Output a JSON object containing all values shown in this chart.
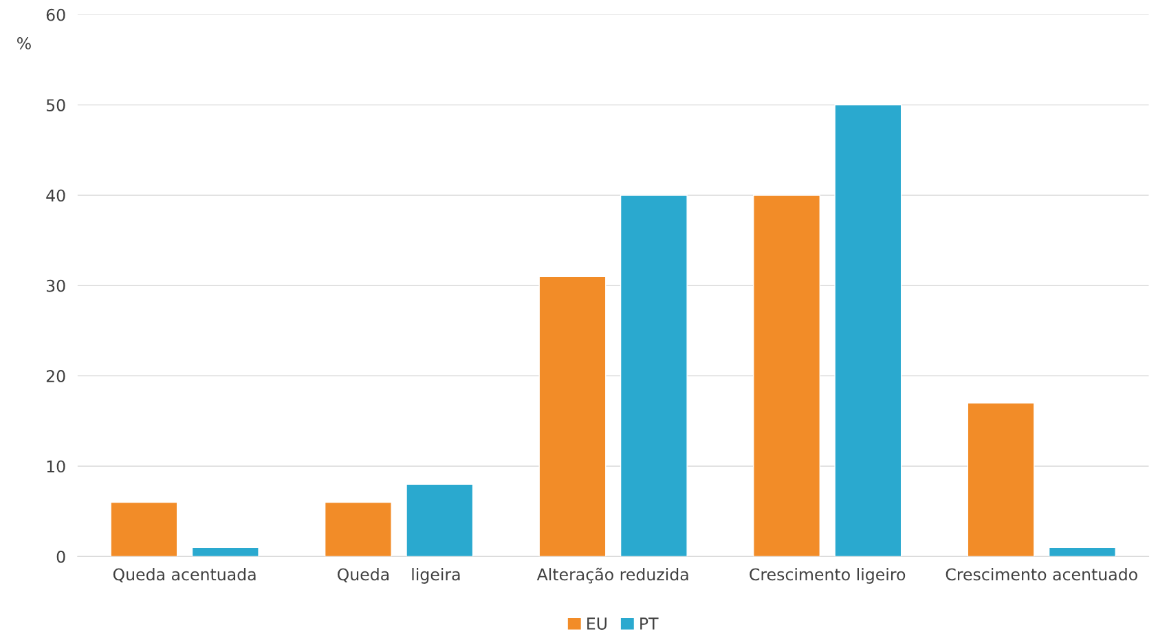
{
  "chart_data": {
    "type": "bar",
    "ylabel": "%",
    "categories": [
      "Queda acentuada",
      "Queda    ligeira",
      "Alteração reduzida",
      "Crescimento ligeiro",
      "Crescimento acentuado"
    ],
    "series": [
      {
        "name": "EU",
        "color": "#f28c28",
        "values": [
          6,
          6,
          31,
          40,
          17
        ]
      },
      {
        "name": "PT",
        "color": "#2aa9cf",
        "values": [
          1,
          8,
          40,
          50,
          1
        ]
      }
    ],
    "ylim": [
      0,
      60
    ],
    "yticks": [
      0,
      10,
      20,
      30,
      40,
      50,
      60
    ],
    "grid": "y",
    "legend": "bottom"
  }
}
